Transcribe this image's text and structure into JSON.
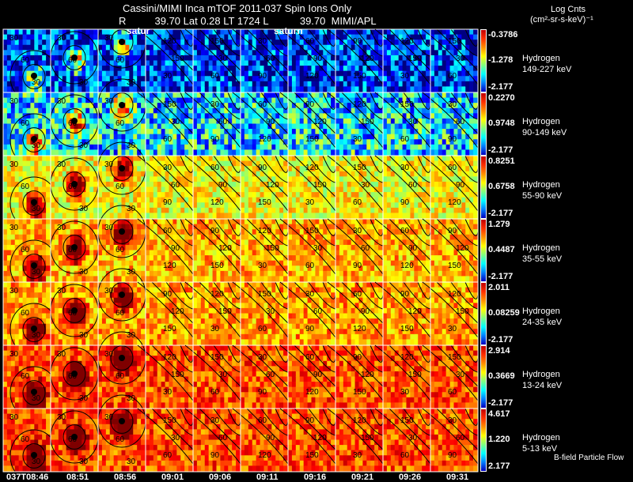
{
  "header": {
    "line1": "Cassini/MIMI Inca mTOF  2011-037   Spin   Ions Only",
    "line2": "R          39.70 Lat 0.28 LT 1724 L           39.70  MIMI/APL",
    "planet_labels": [
      "satur",
      "saturn"
    ]
  },
  "colorbar_title": {
    "line1": "Log Cnts",
    "line2": "(cm²-sr-s-keV)⁻¹"
  },
  "flow_label": "B-field Particle Flow",
  "chart_data": {
    "type": "heatmap",
    "title": "Cassini/MIMI Inca mTOF  2011-037   Spin   Ions Only",
    "times": [
      "037T08:46",
      "08:51",
      "08:56",
      "09:01",
      "09:06",
      "09:11",
      "09:16",
      "09:21",
      "09:26",
      "09:31"
    ],
    "rows": [
      {
        "species": "Hydrogen",
        "energy": "149-227 keV",
        "cmax": "-0.3786",
        "cmid": "-1.278",
        "cmin": "-2.177",
        "level": 0.15
      },
      {
        "species": "Hydrogen",
        "energy": "90-149 keV",
        "cmax": "0.2270",
        "cmid": "0.9748",
        "cmin": "-2.177",
        "level": 0.35
      },
      {
        "species": "Hydrogen",
        "energy": "55-90 keV",
        "cmax": "0.8251",
        "cmid": "0.6758",
        "cmin": "-2.177",
        "level": 0.62
      },
      {
        "species": "Hydrogen",
        "energy": "35-55 keV",
        "cmax": "1.279",
        "cmid": "0.4487",
        "cmin": "-2.177",
        "level": 0.7
      },
      {
        "species": "Hydrogen",
        "energy": "24-35 keV",
        "cmax": "2.011",
        "cmid": "0.08259",
        "cmin": "-2.177",
        "level": 0.72
      },
      {
        "species": "Hydrogen",
        "energy": "13-24 keV",
        "cmax": "2.914",
        "cmid": "0.3669",
        "cmin": "-2.177",
        "level": 0.8
      },
      {
        "species": "Hydrogen",
        "energy": "5-13 keV",
        "cmax": "4.617",
        "cmid": "1.220",
        "cmin": "2.177",
        "level": 0.8
      }
    ],
    "contour_labels_early": [
      "30",
      "60",
      "30"
    ],
    "contour_labels_late": [
      "30",
      "60",
      "90",
      "120",
      "150"
    ]
  }
}
